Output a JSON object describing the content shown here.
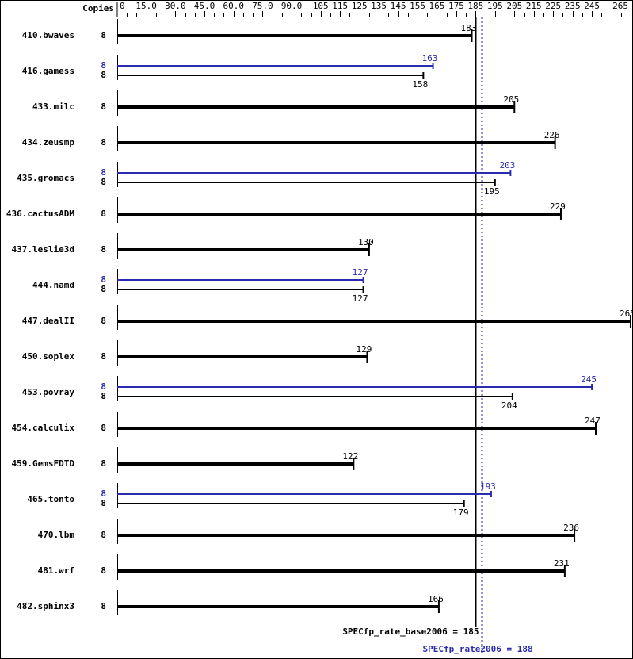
{
  "chart_data": {
    "type": "bar",
    "orientation": "horizontal",
    "axis_header": "Copies",
    "xlim": [
      0,
      265
    ],
    "x_tick_labels": [
      "0",
      "15.0",
      "30.0",
      "45.0",
      "60.0",
      "75.0",
      "90.0",
      "105",
      "115",
      "125",
      "135",
      "145",
      "155",
      "165",
      "175",
      "185",
      "195",
      "205",
      "215",
      "225",
      "235",
      "245",
      "265"
    ],
    "x_tick_values": [
      0,
      15,
      30,
      45,
      60,
      75,
      90,
      105,
      115,
      125,
      135,
      145,
      155,
      165,
      175,
      185,
      195,
      205,
      215,
      225,
      235,
      245,
      265
    ],
    "colors": {
      "base": "#000000",
      "peak": "#2b2bb0"
    },
    "benchmarks": [
      {
        "name": "410.bwaves",
        "copies": "8",
        "base": 183
      },
      {
        "name": "416.gamess",
        "copies": "8",
        "peak_copies": "8",
        "base": 158,
        "peak": 163
      },
      {
        "name": "433.milc",
        "copies": "8",
        "base": 205
      },
      {
        "name": "434.zeusmp",
        "copies": "8",
        "base": 226
      },
      {
        "name": "435.gromacs",
        "copies": "8",
        "peak_copies": "8",
        "base": 195,
        "peak": 203
      },
      {
        "name": "436.cactusADM",
        "copies": "8",
        "base": 229
      },
      {
        "name": "437.leslie3d",
        "copies": "8",
        "base": 130
      },
      {
        "name": "444.namd",
        "copies": "8",
        "peak_copies": "8",
        "base": 127,
        "peak": 127
      },
      {
        "name": "447.dealII",
        "copies": "8",
        "base": 265
      },
      {
        "name": "450.soplex",
        "copies": "8",
        "base": 129
      },
      {
        "name": "453.povray",
        "copies": "8",
        "peak_copies": "8",
        "base": 204,
        "peak": 245
      },
      {
        "name": "454.calculix",
        "copies": "8",
        "base": 247
      },
      {
        "name": "459.GemsFDTD",
        "copies": "8",
        "base": 122
      },
      {
        "name": "465.tonto",
        "copies": "8",
        "peak_copies": "8",
        "base": 179,
        "peak": 193
      },
      {
        "name": "470.lbm",
        "copies": "8",
        "base": 236
      },
      {
        "name": "481.wrf",
        "copies": "8",
        "base": 231
      },
      {
        "name": "482.sphinx3",
        "copies": "8",
        "base": 166
      }
    ],
    "summary": {
      "base_value": 185,
      "base_label": "SPECfp_rate_base2006 = 185",
      "peak_value": 188,
      "peak_label": "SPECfp_rate2006 = 188"
    }
  }
}
